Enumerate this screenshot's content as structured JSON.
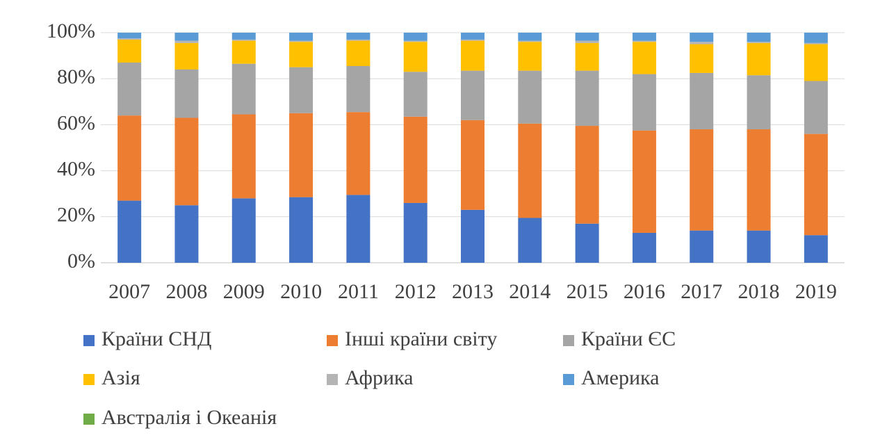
{
  "chart_data": {
    "type": "stacked_bar",
    "categories": [
      "2007",
      "2008",
      "2009",
      "2010",
      "2011",
      "2012",
      "2013",
      "2014",
      "2015",
      "2016",
      "2017",
      "2018",
      "2019"
    ],
    "series": [
      {
        "name": "Країни СНД",
        "color": "#4472c4",
        "values": [
          27,
          25,
          28,
          28.5,
          29.5,
          26,
          23,
          19.5,
          17,
          13,
          14,
          14,
          12
        ]
      },
      {
        "name": "Інші країни світу",
        "color": "#ed7d31",
        "values": [
          37,
          38,
          36.5,
          36.5,
          36,
          37.5,
          39,
          41,
          42.5,
          44.5,
          44,
          44,
          44
        ]
      },
      {
        "name": "Країни ЄС",
        "color": "#a5a5a5",
        "values": [
          23,
          21,
          22,
          20,
          20,
          19.5,
          21.5,
          23,
          24,
          24.5,
          24.5,
          23.5,
          23
        ]
      },
      {
        "name": "Азія",
        "color": "#ffc000",
        "values": [
          10,
          11.5,
          10,
          11,
          11,
          13,
          13,
          12.5,
          12,
          14,
          12.5,
          14,
          16
        ]
      },
      {
        "name": "Африка",
        "color": "#b4b4b4",
        "values": [
          0.5,
          1,
          0.5,
          0.5,
          0.5,
          0.5,
          0.5,
          0.5,
          1,
          0.5,
          1,
          0.5,
          0.5
        ]
      },
      {
        "name": "Америка",
        "color": "#5b9bd5",
        "values": [
          2.5,
          3.5,
          3,
          3.5,
          3,
          3.5,
          3,
          3.5,
          3.5,
          3.5,
          4,
          4,
          4.5
        ]
      },
      {
        "name": "Австралія і Океанія",
        "color": "#70ad47",
        "values": [
          0,
          0,
          0,
          0,
          0,
          0,
          0,
          0,
          0,
          0,
          0,
          0,
          0
        ]
      }
    ],
    "ylim": [
      0,
      100
    ],
    "yticks": [
      {
        "value": 0,
        "label": "0%"
      },
      {
        "value": 20,
        "label": "20%"
      },
      {
        "value": 40,
        "label": "40%"
      },
      {
        "value": 60,
        "label": "60%"
      },
      {
        "value": 80,
        "label": "80%"
      },
      {
        "value": 100,
        "label": "100%"
      }
    ],
    "grid": true,
    "legend": "bottom"
  }
}
